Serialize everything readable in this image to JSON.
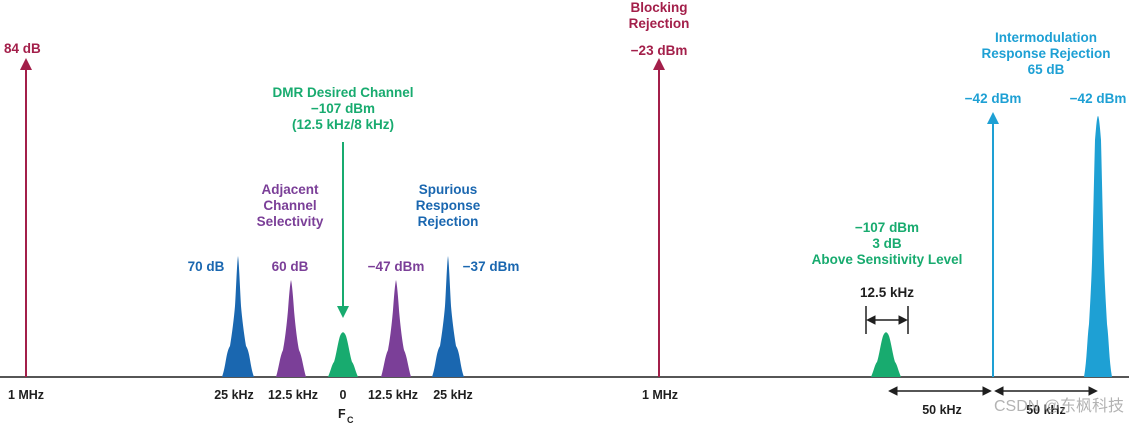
{
  "colors": {
    "crimson": "#a31f4a",
    "green": "#18ab6f",
    "purple": "#7b3f98",
    "blue": "#1a67b0",
    "cyan": "#1ea0d4",
    "axis": "#1f1f1f",
    "watermark": "#9a9a9a"
  },
  "icons": {
    "signal": "triangle-arrow",
    "spectrum_peak": "spectral-lobe",
    "double_arrow": "double-headed-arrow"
  },
  "labels": {
    "left_level": "84 dB",
    "blocking_title_1": "Blocking",
    "blocking_title_2": "Rejection",
    "blocking_level": "−23 dBm",
    "dmr_1": "DMR Desired Channel",
    "dmr_2": "−107 dBm",
    "dmr_3": "(12.5 kHz/8 kHz)",
    "adjacent_1": "Adjacent",
    "adjacent_2": "Channel",
    "adjacent_3": "Selectivity",
    "spurious_1": "Spurious",
    "spurious_2": "Response",
    "spurious_3": "Rejection",
    "peak_70": "70 dB",
    "peak_60": "60 dB",
    "peak_m47": "−47 dBm",
    "peak_m37": "−37 dBm",
    "sens_1": "−107 dBm",
    "sens_2": "3 dB",
    "sens_3": "Above Sensitivity Level",
    "bw_label": "12.5 kHz",
    "im_1": "Intermodulation",
    "im_2": "Response Rejection",
    "im_3": "65 dB",
    "im_level_a": "−42 dBm",
    "im_level_b": "−42 dBm"
  },
  "axis_labels": {
    "left_1mhz": "1 MHz",
    "n25": "25 kHz",
    "n12_5": "12.5 kHz",
    "zero": "0",
    "p12_5": "12.5 kHz",
    "p25": "25 kHz",
    "right_1mhz": "1 MHz",
    "fc_main": "F",
    "fc_sub": "C",
    "spacing_a": "50 kHz",
    "spacing_b": "50 kHz"
  },
  "watermark": "CSDN @东枫科技"
}
